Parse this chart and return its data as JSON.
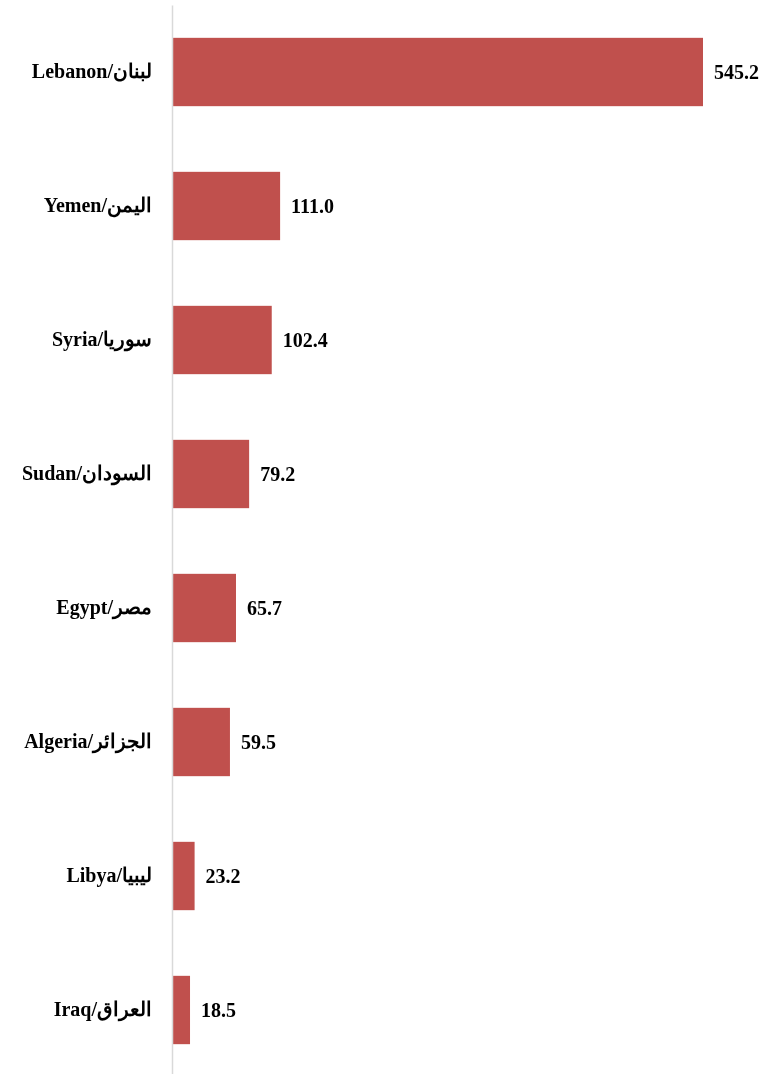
{
  "chart_data": {
    "type": "bar",
    "orientation": "horizontal",
    "categories": [
      "Lebanon/لبنان",
      "Yemen/اليمن",
      "Syria/سوريا",
      "Sudan/السودان",
      "Egypt/مصر",
      "Algeria/الجزائر",
      "Libya/ليبيا",
      "Iraq/العراق"
    ],
    "values": [
      545.2,
      111.0,
      102.4,
      79.2,
      65.7,
      59.5,
      23.2,
      18.5
    ],
    "value_labels": [
      "545.2",
      "111.0",
      "102.4",
      "79.2",
      "65.7",
      "59.5",
      "23.2",
      "18.5"
    ],
    "color": "#c0504d"
  }
}
